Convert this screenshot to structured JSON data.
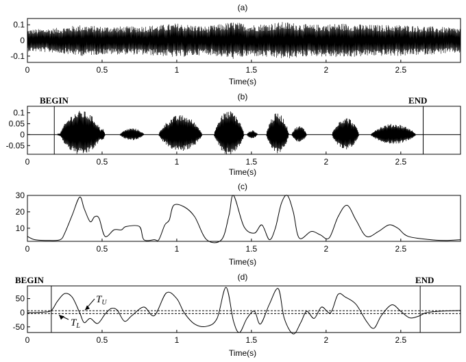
{
  "chart_data": [
    {
      "id": "a",
      "type": "line",
      "title": "(a)",
      "xlabel": "Time(s)",
      "ylabel": "",
      "xlim": [
        0,
        2.9
      ],
      "ylim": [
        -0.14,
        0.14
      ],
      "xticks": [
        0,
        0.5,
        1,
        1.5,
        2,
        2.5
      ],
      "xtick_labels": [
        "0",
        "0.5",
        "1",
        "1.5",
        "2",
        "2.5"
      ],
      "yticks": [
        -0.1,
        0,
        0.1
      ],
      "ytick_labels": [
        "-0.1",
        "0",
        "0.1"
      ],
      "series": [
        {
          "kind": "waveform",
          "duration": 2.9,
          "envelope": [
            [
              0,
              0.07
            ],
            [
              0.2,
              0.08
            ],
            [
              0.35,
              0.1
            ],
            [
              0.5,
              0.09
            ],
            [
              0.7,
              0.09
            ],
            [
              0.9,
              0.1
            ],
            [
              1.0,
              0.11
            ],
            [
              1.2,
              0.09
            ],
            [
              1.38,
              0.12
            ],
            [
              1.5,
              0.1
            ],
            [
              1.72,
              0.12
            ],
            [
              1.9,
              0.1
            ],
            [
              2.1,
              0.11
            ],
            [
              2.3,
              0.1
            ],
            [
              2.5,
              0.1
            ],
            [
              2.7,
              0.09
            ],
            [
              2.9,
              0.08
            ]
          ]
        }
      ]
    },
    {
      "id": "b",
      "type": "line",
      "title": "(b)",
      "xlabel": "Time(s)",
      "ylabel": "",
      "xlim": [
        0,
        2.9
      ],
      "ylim": [
        -0.09,
        0.13
      ],
      "xticks": [
        0,
        0.5,
        1,
        1.5,
        2,
        2.5
      ],
      "xtick_labels": [
        "0",
        "0.5",
        "1",
        "1.5",
        "2",
        "2.5"
      ],
      "yticks": [
        -0.05,
        0,
        0.05,
        0.1
      ],
      "ytick_labels": [
        "-0.05",
        "0",
        "0.05",
        "0.1"
      ],
      "begin_label": "BEGIN",
      "end_label": "END",
      "begin_x": 0.18,
      "end_x": 2.65,
      "series": [
        {
          "kind": "waveform",
          "duration": 2.9,
          "segments": [
            {
              "start": 0.2,
              "end": 0.28,
              "peak": 0.01
            },
            {
              "start": 0.22,
              "end": 0.5,
              "peak": 0.11
            },
            {
              "start": 0.48,
              "end": 0.52,
              "peak": 0.03
            },
            {
              "start": 0.62,
              "end": 0.78,
              "peak": 0.03
            },
            {
              "start": 0.88,
              "end": 1.17,
              "peak": 0.09
            },
            {
              "start": 1.25,
              "end": 1.45,
              "peak": 0.11
            },
            {
              "start": 1.47,
              "end": 1.54,
              "peak": 0.02
            },
            {
              "start": 1.6,
              "end": 1.75,
              "peak": 0.1
            },
            {
              "start": 1.77,
              "end": 1.87,
              "peak": 0.04
            },
            {
              "start": 2.04,
              "end": 2.22,
              "peak": 0.08
            },
            {
              "start": 2.3,
              "end": 2.6,
              "peak": 0.05
            }
          ]
        }
      ]
    },
    {
      "id": "c",
      "type": "line",
      "title": "(c)",
      "xlabel": "Time(s)",
      "ylabel": "",
      "xlim": [
        0,
        2.9
      ],
      "ylim": [
        2,
        30
      ],
      "xticks": [
        0,
        0.5,
        1,
        1.5,
        2,
        2.5
      ],
      "xtick_labels": [
        "0",
        "0.5",
        "1",
        "1.5",
        "2",
        "2.5"
      ],
      "yticks": [
        10,
        20,
        30
      ],
      "ytick_labels": [
        "10",
        "20",
        "30"
      ],
      "series": [
        {
          "kind": "curve",
          "points": [
            [
              0,
              5
            ],
            [
              0.05,
              3
            ],
            [
              0.15,
              2.5
            ],
            [
              0.22,
              3
            ],
            [
              0.25,
              7
            ],
            [
              0.3,
              18
            ],
            [
              0.35,
              29
            ],
            [
              0.38,
              22
            ],
            [
              0.42,
              14
            ],
            [
              0.45,
              17
            ],
            [
              0.48,
              16
            ],
            [
              0.52,
              5
            ],
            [
              0.58,
              9
            ],
            [
              0.63,
              9
            ],
            [
              0.66,
              11
            ],
            [
              0.75,
              11
            ],
            [
              0.78,
              3
            ],
            [
              0.85,
              3
            ],
            [
              0.88,
              3
            ],
            [
              0.92,
              12
            ],
            [
              0.95,
              15
            ],
            [
              0.98,
              24
            ],
            [
              1.05,
              23
            ],
            [
              1.12,
              17
            ],
            [
              1.2,
              3
            ],
            [
              1.3,
              3
            ],
            [
              1.35,
              18
            ],
            [
              1.38,
              30
            ],
            [
              1.45,
              11
            ],
            [
              1.52,
              7
            ],
            [
              1.57,
              12
            ],
            [
              1.62,
              3
            ],
            [
              1.66,
              10
            ],
            [
              1.7,
              25
            ],
            [
              1.74,
              30
            ],
            [
              1.78,
              20
            ],
            [
              1.82,
              4
            ],
            [
              1.9,
              8
            ],
            [
              1.96,
              6
            ],
            [
              2.02,
              4
            ],
            [
              2.08,
              17
            ],
            [
              2.14,
              24
            ],
            [
              2.2,
              15
            ],
            [
              2.27,
              5
            ],
            [
              2.35,
              8
            ],
            [
              2.42,
              12
            ],
            [
              2.48,
              10
            ],
            [
              2.55,
              5
            ],
            [
              2.7,
              3
            ],
            [
              2.8,
              2.5
            ],
            [
              2.9,
              3
            ]
          ]
        }
      ]
    },
    {
      "id": "d",
      "type": "line",
      "title": "(d)",
      "xlabel": "Time(s)",
      "ylabel": "",
      "xlim": [
        0,
        2.9
      ],
      "ylim": [
        -70,
        95
      ],
      "xticks": [
        0,
        0.5,
        1,
        1.5,
        2,
        2.5
      ],
      "xtick_labels": [
        "0",
        "0.5",
        "1",
        "1.5",
        "2",
        "2.5"
      ],
      "yticks": [
        -50,
        0,
        50
      ],
      "ytick_labels": [
        "-50",
        "0",
        "50"
      ],
      "begin_label": "BEGIN",
      "end_label": "END",
      "begin_x": 0.16,
      "end_x": 2.63,
      "threshold_upper": 7,
      "threshold_lower": -3,
      "threshold_upper_label": "T",
      "threshold_upper_sub": "U",
      "threshold_lower_label": "T",
      "threshold_lower_sub": "L",
      "series": [
        {
          "kind": "curve",
          "points": [
            [
              0,
              0
            ],
            [
              0.1,
              2
            ],
            [
              0.16,
              8
            ],
            [
              0.2,
              40
            ],
            [
              0.25,
              68
            ],
            [
              0.3,
              55
            ],
            [
              0.35,
              0
            ],
            [
              0.38,
              -35
            ],
            [
              0.42,
              -20
            ],
            [
              0.47,
              -38
            ],
            [
              0.52,
              -5
            ],
            [
              0.56,
              15
            ],
            [
              0.6,
              10
            ],
            [
              0.65,
              -30
            ],
            [
              0.7,
              -10
            ],
            [
              0.78,
              20
            ],
            [
              0.85,
              -10
            ],
            [
              0.93,
              70
            ],
            [
              1.0,
              50
            ],
            [
              1.05,
              0
            ],
            [
              1.12,
              -40
            ],
            [
              1.2,
              -48
            ],
            [
              1.27,
              -20
            ],
            [
              1.33,
              90
            ],
            [
              1.38,
              -30
            ],
            [
              1.42,
              -70
            ],
            [
              1.47,
              -20
            ],
            [
              1.52,
              5
            ],
            [
              1.56,
              -40
            ],
            [
              1.62,
              30
            ],
            [
              1.68,
              85
            ],
            [
              1.72,
              -20
            ],
            [
              1.78,
              -75
            ],
            [
              1.83,
              -35
            ],
            [
              1.87,
              5
            ],
            [
              1.92,
              -20
            ],
            [
              1.97,
              20
            ],
            [
              2.03,
              0
            ],
            [
              2.08,
              65
            ],
            [
              2.13,
              55
            ],
            [
              2.2,
              30
            ],
            [
              2.27,
              -30
            ],
            [
              2.32,
              -55
            ],
            [
              2.37,
              -10
            ],
            [
              2.44,
              28
            ],
            [
              2.5,
              5
            ],
            [
              2.56,
              -18
            ],
            [
              2.62,
              -12
            ],
            [
              2.67,
              0
            ],
            [
              2.75,
              5
            ],
            [
              2.9,
              8
            ]
          ]
        }
      ]
    }
  ]
}
